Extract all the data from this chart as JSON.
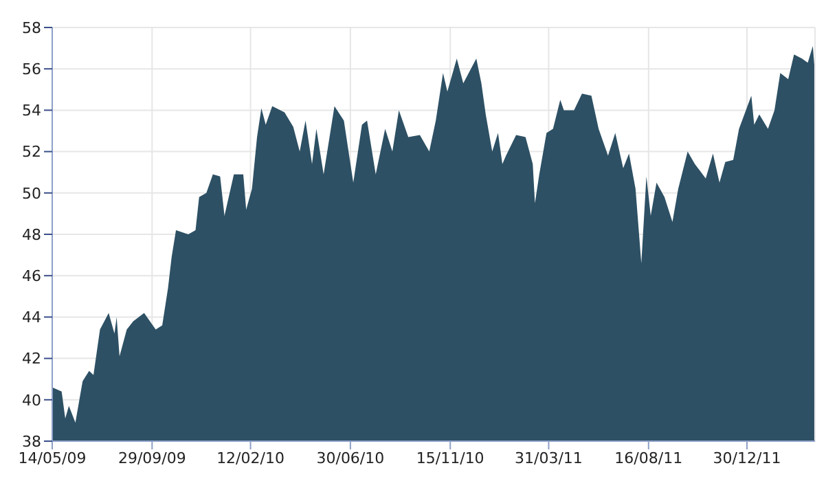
{
  "chart_data": {
    "type": "area",
    "grid": true,
    "xlim": [
      "2009-05-14",
      "2012-04-02"
    ],
    "xticks": [
      {
        "value": "2009-05-14",
        "label": "14/05/09"
      },
      {
        "value": "2009-09-29",
        "label": "29/09/09"
      },
      {
        "value": "2010-02-12",
        "label": "12/02/10"
      },
      {
        "value": "2010-06-30",
        "label": "30/06/10"
      },
      {
        "value": "2010-11-15",
        "label": "15/11/10"
      },
      {
        "value": "2011-03-31",
        "label": "31/03/11"
      },
      {
        "value": "2011-08-16",
        "label": "16/08/11"
      },
      {
        "value": "2011-12-30",
        "label": "30/12/11"
      }
    ],
    "ylim": [
      38,
      58
    ],
    "yticks": [
      38,
      40,
      42,
      44,
      46,
      48,
      50,
      52,
      54,
      56,
      58
    ],
    "x": [
      "2009-05-14",
      "2009-05-27",
      "2009-06-01",
      "2009-06-06",
      "2009-06-15",
      "2009-06-25",
      "2009-07-04",
      "2009-07-10",
      "2009-07-19",
      "2009-07-31",
      "2009-08-08",
      "2009-08-11",
      "2009-08-15",
      "2009-08-25",
      "2009-09-03",
      "2009-09-18",
      "2009-10-04",
      "2009-10-13",
      "2009-10-21",
      "2009-10-26",
      "2009-11-01",
      "2009-11-18",
      "2009-11-28",
      "2009-12-03",
      "2009-12-13",
      "2009-12-22",
      "2010-01-01",
      "2010-01-07",
      "2010-01-20",
      "2010-02-02",
      "2010-02-06",
      "2010-02-14",
      "2010-02-21",
      "2010-02-27",
      "2010-03-05",
      "2010-03-14",
      "2010-03-31",
      "2010-04-12",
      "2010-04-21",
      "2010-04-29",
      "2010-05-08",
      "2010-05-14",
      "2010-05-24",
      "2010-06-08",
      "2010-06-21",
      "2010-07-04",
      "2010-07-16",
      "2010-07-23",
      "2010-08-04",
      "2010-08-17",
      "2010-08-27",
      "2010-09-05",
      "2010-09-18",
      "2010-10-04",
      "2010-10-17",
      "2010-10-26",
      "2010-11-05",
      "2010-11-11",
      "2010-11-24",
      "2010-12-03",
      "2010-12-21",
      "2010-12-28",
      "2011-01-03",
      "2011-01-12",
      "2011-01-20",
      "2011-01-26",
      "2011-01-31",
      "2011-02-14",
      "2011-02-27",
      "2011-03-09",
      "2011-03-12",
      "2011-03-18",
      "2011-03-28",
      "2011-04-06",
      "2011-04-16",
      "2011-04-21",
      "2011-05-05",
      "2011-05-16",
      "2011-05-29",
      "2011-06-08",
      "2011-06-21",
      "2011-07-01",
      "2011-07-12",
      "2011-07-20",
      "2011-07-29",
      "2011-08-06",
      "2011-08-13",
      "2011-08-19",
      "2011-08-27",
      "2011-09-07",
      "2011-09-18",
      "2011-09-26",
      "2011-10-09",
      "2011-10-19",
      "2011-11-03",
      "2011-11-13",
      "2011-11-22",
      "2011-11-30",
      "2011-12-11",
      "2011-12-19",
      "2012-01-05",
      "2012-01-09",
      "2012-01-16",
      "2012-01-28",
      "2012-02-06",
      "2012-02-14",
      "2012-02-25",
      "2012-03-04",
      "2012-03-15",
      "2012-03-23",
      "2012-03-30",
      "2012-04-01"
    ],
    "series": [
      {
        "color": "#2d5064",
        "values": [
          40.6,
          40.4,
          39.1,
          39.7,
          38.9,
          40.9,
          41.4,
          41.2,
          43.4,
          44.2,
          43.2,
          44.0,
          42.1,
          43.4,
          43.8,
          44.2,
          43.4,
          43.6,
          45.4,
          46.9,
          48.2,
          48.0,
          48.2,
          49.8,
          50.0,
          50.9,
          50.8,
          48.9,
          50.9,
          50.9,
          49.2,
          50.2,
          52.7,
          54.1,
          53.3,
          54.2,
          53.9,
          53.2,
          52.0,
          53.5,
          51.4,
          53.1,
          50.9,
          54.2,
          53.5,
          50.5,
          53.3,
          53.5,
          50.9,
          53.1,
          52.0,
          54.0,
          52.7,
          52.8,
          52.0,
          53.5,
          55.8,
          54.9,
          56.5,
          55.3,
          56.5,
          55.3,
          53.8,
          52.0,
          52.9,
          51.4,
          51.8,
          52.8,
          52.7,
          51.4,
          49.5,
          50.9,
          52.9,
          53.1,
          54.5,
          54.0,
          54.0,
          54.8,
          54.7,
          53.1,
          51.8,
          52.9,
          51.2,
          51.9,
          50.2,
          46.6,
          50.8,
          48.9,
          50.5,
          49.8,
          48.6,
          50.2,
          52.0,
          51.4,
          50.7,
          51.9,
          50.5,
          51.5,
          51.6,
          53.1,
          54.7,
          53.3,
          53.8,
          53.1,
          54.0,
          55.8,
          55.5,
          56.7,
          56.5,
          56.3,
          57.1,
          56.2
        ]
      }
    ]
  }
}
